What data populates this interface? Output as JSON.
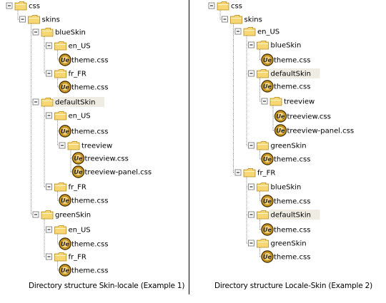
{
  "diagram": {
    "left_caption": "Directory structure Skin-locale (Example 1)",
    "right_caption": "Directory structure Locale-Skin (Example 2)",
    "left_tree": [
      {
        "label": "css",
        "type": "folder",
        "depth": 0,
        "expanded": true
      },
      {
        "label": "skins",
        "type": "folder",
        "depth": 1,
        "expanded": true
      },
      {
        "label": "blueSkin",
        "type": "folder",
        "depth": 2,
        "expanded": true
      },
      {
        "label": "en_US",
        "type": "folder",
        "depth": 3,
        "expanded": true
      },
      {
        "label": "theme.css",
        "type": "file",
        "depth": 4
      },
      {
        "label": "fr_FR",
        "type": "folder",
        "depth": 3,
        "expanded": true
      },
      {
        "label": "theme.css",
        "type": "file",
        "depth": 4
      },
      {
        "label": "defaultSkin",
        "type": "folder",
        "depth": 2,
        "expanded": true,
        "highlighted": true
      },
      {
        "label": "en_US",
        "type": "folder",
        "depth": 3,
        "expanded": true
      },
      {
        "label": "theme.css",
        "type": "file",
        "depth": 4
      },
      {
        "label": "treeview",
        "type": "folder",
        "depth": 4,
        "expanded": true
      },
      {
        "label": "treeview.css",
        "type": "file",
        "depth": 5
      },
      {
        "label": "treeview-panel.css",
        "type": "file",
        "depth": 5
      },
      {
        "label": "fr_FR",
        "type": "folder",
        "depth": 3,
        "expanded": true
      },
      {
        "label": "theme.css",
        "type": "file",
        "depth": 4
      },
      {
        "label": "greenSkin",
        "type": "folder",
        "depth": 2,
        "expanded": true
      },
      {
        "label": "en_US",
        "type": "folder",
        "depth": 3,
        "expanded": true
      },
      {
        "label": "theme.css",
        "type": "file",
        "depth": 4
      },
      {
        "label": "fr_FR",
        "type": "folder",
        "depth": 3,
        "expanded": true
      },
      {
        "label": "theme.css",
        "type": "file",
        "depth": 4
      }
    ],
    "right_tree": [
      {
        "label": "css",
        "type": "folder",
        "depth": 0,
        "expanded": true
      },
      {
        "label": "skins",
        "type": "folder",
        "depth": 1,
        "expanded": true
      },
      {
        "label": "en_US",
        "type": "folder",
        "depth": 2,
        "expanded": true
      },
      {
        "label": "blueSkin",
        "type": "folder",
        "depth": 3,
        "expanded": true
      },
      {
        "label": "theme.css",
        "type": "file",
        "depth": 4
      },
      {
        "label": "defaultSkin",
        "type": "folder",
        "depth": 3,
        "expanded": true,
        "highlighted": true
      },
      {
        "label": "theme.css",
        "type": "file",
        "depth": 4
      },
      {
        "label": "treeview",
        "type": "folder",
        "depth": 4,
        "expanded": true
      },
      {
        "label": "treeview.css",
        "type": "file",
        "depth": 5
      },
      {
        "label": "treeview-panel.css",
        "type": "file",
        "depth": 5
      },
      {
        "label": "greenSkin",
        "type": "folder",
        "depth": 3,
        "expanded": true
      },
      {
        "label": "theme.css",
        "type": "file",
        "depth": 4
      },
      {
        "label": "fr_FR",
        "type": "folder",
        "depth": 2,
        "expanded": true
      },
      {
        "label": "blueSkin",
        "type": "folder",
        "depth": 3,
        "expanded": true
      },
      {
        "label": "theme.css",
        "type": "file",
        "depth": 4
      },
      {
        "label": "defaultSkin",
        "type": "folder",
        "depth": 3,
        "expanded": true,
        "highlighted": true
      },
      {
        "label": "theme.css",
        "type": "file",
        "depth": 4
      },
      {
        "label": "greenSkin",
        "type": "folder",
        "depth": 3,
        "expanded": true
      },
      {
        "label": "theme.css",
        "type": "file",
        "depth": 4
      }
    ],
    "colors": {
      "connector": "#8a8a8a",
      "folder_fill": "#f7d774",
      "folder_edge": "#b58a18",
      "highlight": "#efece3",
      "file_badge": "#e0a51c",
      "file_badge_edge": "#4a3606",
      "file_badge_letters": "#2b2b2b"
    },
    "file_icon_letters": "Ue"
  }
}
